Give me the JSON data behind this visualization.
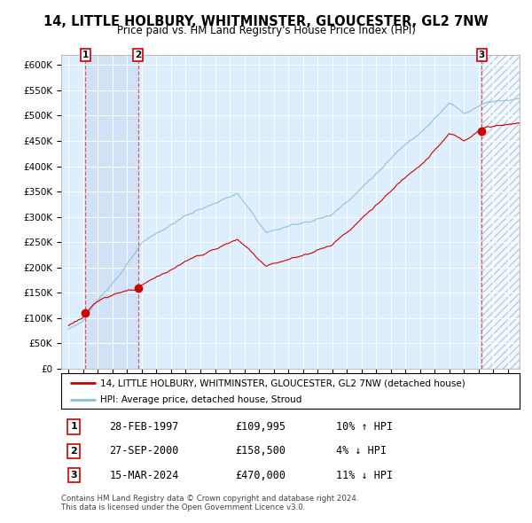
{
  "title": "14, LITTLE HOLBURY, WHITMINSTER, GLOUCESTER, GL2 7NW",
  "subtitle": "Price paid vs. HM Land Registry's House Price Index (HPI)",
  "legend_property": "14, LITTLE HOLBURY, WHITMINSTER, GLOUCESTER, GL2 7NW (detached house)",
  "legend_hpi": "HPI: Average price, detached house, Stroud",
  "transactions": [
    {
      "num": 1,
      "date_str": "28-FEB-1997",
      "year": 1997.16,
      "price": 109995,
      "pct": "10%",
      "dir": "↑"
    },
    {
      "num": 2,
      "date_str": "27-SEP-2000",
      "year": 2000.74,
      "price": 158500,
      "pct": "4%",
      "dir": "↓"
    },
    {
      "num": 3,
      "date_str": "15-MAR-2024",
      "year": 2024.21,
      "price": 470000,
      "pct": "11%",
      "dir": "↓"
    }
  ],
  "table_rows": [
    {
      "num": 1,
      "date": "28-FEB-1997",
      "price": "£109,995",
      "hpi": "10% ↑ HPI"
    },
    {
      "num": 2,
      "date": "27-SEP-2000",
      "price": "£158,500",
      "hpi": "4% ↓ HPI"
    },
    {
      "num": 3,
      "date": "15-MAR-2024",
      "price": "£470,000",
      "hpi": "11% ↓ HPI"
    }
  ],
  "footnote1": "Contains HM Land Registry data © Crown copyright and database right 2024.",
  "footnote2": "This data is licensed under the Open Government Licence v3.0.",
  "property_color": "#cc0000",
  "hpi_color": "#88bbdd",
  "background_color": "#ddeeff",
  "hatch_color": "#bbccdd",
  "ylim": [
    0,
    620000
  ],
  "xlim_start": 1995.5,
  "xlim_end": 2026.8
}
